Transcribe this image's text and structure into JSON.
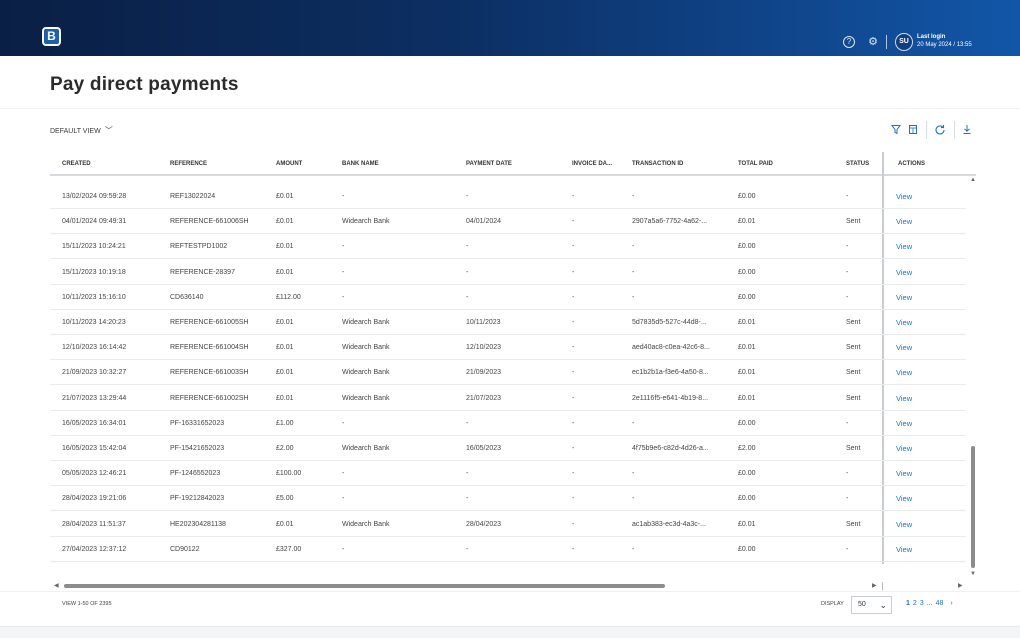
{
  "header": {
    "logo_letter": "B",
    "avatar_initials": "SU",
    "last_login_label": "Last login",
    "last_login_value": "20 May 2024 / 13:55"
  },
  "page": {
    "title": "Pay direct payments",
    "view_selector": "DEFAULT VIEW"
  },
  "table": {
    "columns": [
      "CREATED",
      "REFERENCE",
      "AMOUNT",
      "BANK NAME",
      "PAYMENT DATE",
      "INVOICE DA...",
      "TRANSACTION ID",
      "TOTAL PAID",
      "STATUS",
      "ACTIONS"
    ],
    "action_label": "View",
    "rows": [
      [
        "13/02/2024 09:59:28",
        "REF13022024",
        "£0.01",
        "-",
        "-",
        "-",
        "-",
        "£0.00",
        "-"
      ],
      [
        "04/01/2024 09:49:31",
        "REFERENCE-661006SH",
        "£0.01",
        "Widearch Bank",
        "04/01/2024",
        "-",
        "2907a5a6-7752-4a62-...",
        "£0.01",
        "Sent"
      ],
      [
        "15/11/2023 10:24:21",
        "REFTESTPD1002",
        "£0.01",
        "-",
        "-",
        "-",
        "-",
        "£0.00",
        "-"
      ],
      [
        "15/11/2023 10:19:18",
        "REFERENCE-28397",
        "£0.01",
        "-",
        "-",
        "-",
        "-",
        "£0.00",
        "-"
      ],
      [
        "10/11/2023 15:16:10",
        "CD636140",
        "£112.00",
        "-",
        "-",
        "-",
        "-",
        "£0.00",
        "-"
      ],
      [
        "10/11/2023 14:20:23",
        "REFERENCE-661005SH",
        "£0.01",
        "Widearch Bank",
        "10/11/2023",
        "-",
        "5d7835d5-527c-44d8-...",
        "£0.01",
        "Sent"
      ],
      [
        "12/10/2023 16:14:42",
        "REFERENCE-661004SH",
        "£0.01",
        "Widearch Bank",
        "12/10/2023",
        "-",
        "aed40ac8-c0ea-42c6-8...",
        "£0.01",
        "Sent"
      ],
      [
        "21/09/2023 10:32:27",
        "REFERENCE-661003SH",
        "£0.01",
        "Widearch Bank",
        "21/09/2023",
        "-",
        "ec1b2b1a-f3e6-4a50-8...",
        "£0.01",
        "Sent"
      ],
      [
        "21/07/2023 13:29:44",
        "REFERENCE-661002SH",
        "£0.01",
        "Widearch Bank",
        "21/07/2023",
        "-",
        "2e1116f5-e641-4b19-8...",
        "£0.01",
        "Sent"
      ],
      [
        "16/05/2023 16:34:01",
        "PF-16331652023",
        "£1.00",
        "-",
        "-",
        "-",
        "-",
        "£0.00",
        "-"
      ],
      [
        "16/05/2023 15:42:04",
        "PF-15421652023",
        "£2.00",
        "Widearch Bank",
        "16/05/2023",
        "-",
        "4f75b9e6-c82d-4d26-a...",
        "£2.00",
        "Sent"
      ],
      [
        "05/05/2023 12:46:21",
        "PF-1246552023",
        "£100.00",
        "-",
        "-",
        "-",
        "-",
        "£0.00",
        "-"
      ],
      [
        "28/04/2023 19:21:06",
        "PF-19212842023",
        "£5.00",
        "-",
        "-",
        "-",
        "-",
        "£0.00",
        "-"
      ],
      [
        "28/04/2023 11:51:37",
        "HE202304281138",
        "£0.01",
        "Widearch Bank",
        "28/04/2023",
        "-",
        "ac1ab383-ec3d-4a3c-...",
        "£0.01",
        "Sent"
      ],
      [
        "27/04/2023 12:37:12",
        "CD90122",
        "£327.00",
        "-",
        "-",
        "-",
        "-",
        "£0.00",
        "-"
      ]
    ]
  },
  "footer": {
    "view_count": "VIEW 1-50 OF 2395",
    "display_label": "DISPLAY",
    "display_value": "50",
    "pages": [
      "1",
      "2",
      "3",
      "...",
      "48"
    ]
  },
  "icons": {
    "help": "help-circle-icon",
    "settings": "gear-icon",
    "filter": "filter-icon",
    "columns": "columns-icon",
    "refresh": "refresh-icon",
    "download": "download-icon"
  },
  "colors": {
    "header_dark": "#0a1f44",
    "header_light": "#1256a8",
    "link": "#1a73c9"
  }
}
